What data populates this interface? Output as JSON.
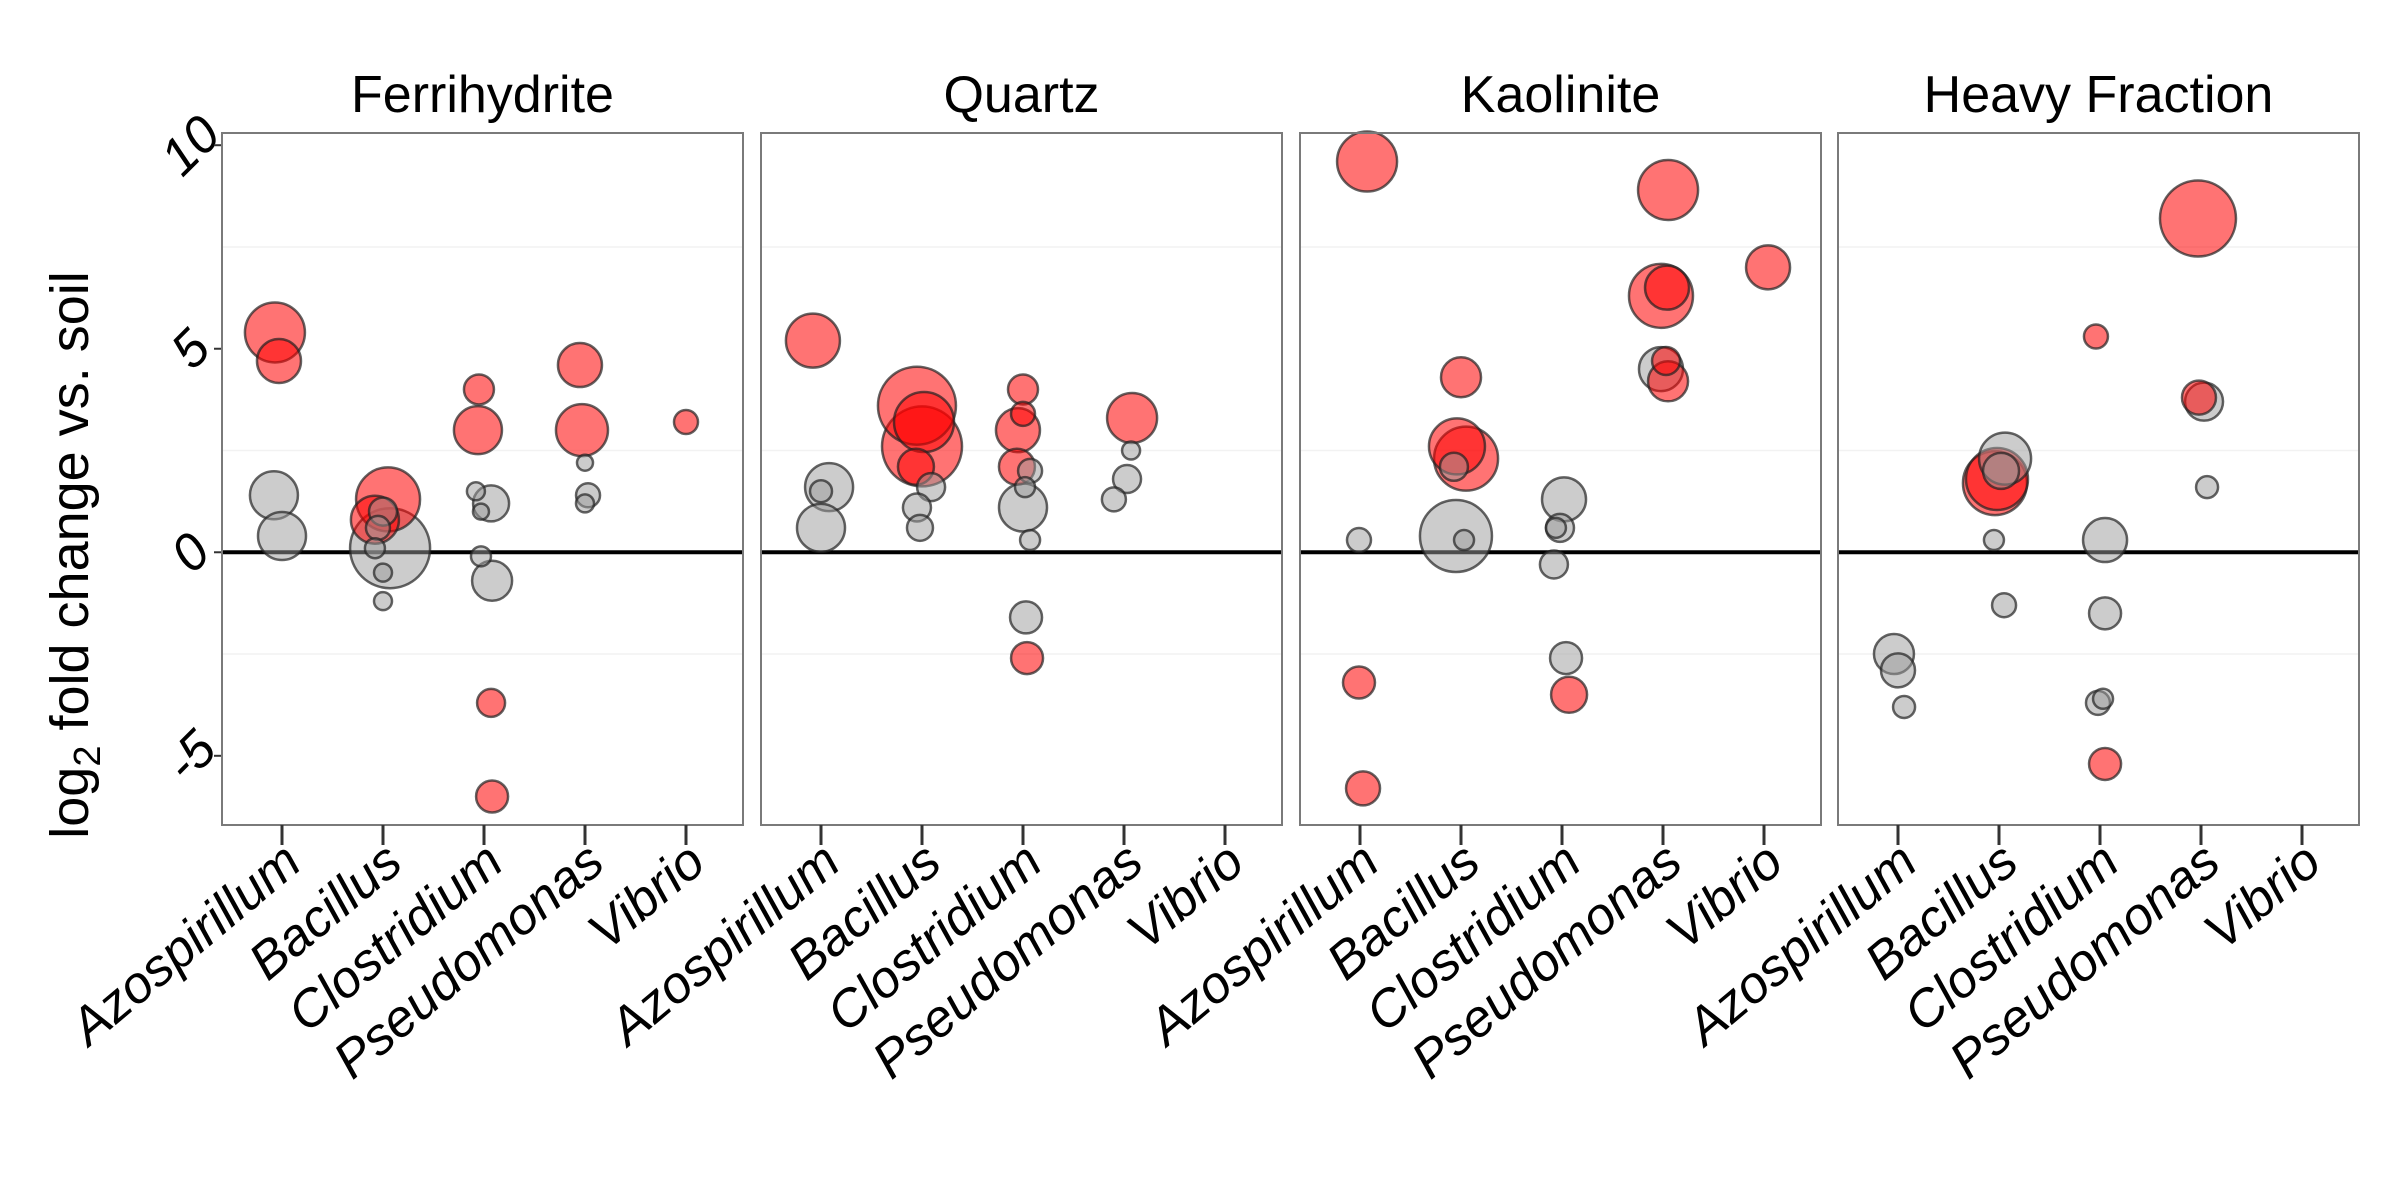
{
  "chart_data": {
    "type": "scatter",
    "ylabel": "log2 fold change vs. soil",
    "ylabel_parts": {
      "prefix": "log",
      "subscript": "2",
      "suffix": " fold change vs. soil"
    },
    "ylim": [
      -6.7,
      10.3
    ],
    "yticks": [
      10,
      5,
      0,
      -5
    ],
    "ytick_labels": [
      "10",
      "5",
      "0",
      "-5"
    ],
    "categories": [
      "Azospirillum",
      "Bacillus",
      "Clostridium",
      "Pseudomonas",
      "Vibrio"
    ],
    "reference_line": 0,
    "colors": {
      "significant": "#ff0000",
      "not_significant": "#999999",
      "outline": "#222222"
    },
    "grid": true,
    "panels": [
      {
        "title": "Ferrihydrite",
        "points": [
          {
            "category": "Azospirillum",
            "y": 5.4,
            "dx": -0.07,
            "size": 3.0,
            "sig": true
          },
          {
            "category": "Azospirillum",
            "y": 4.7,
            "dx": -0.03,
            "size": 2.2,
            "sig": true
          },
          {
            "category": "Azospirillum",
            "y": 1.4,
            "dx": -0.08,
            "size": 2.4,
            "sig": false
          },
          {
            "category": "Azospirillum",
            "y": 0.4,
            "dx": 0.0,
            "size": 2.4,
            "sig": false
          },
          {
            "category": "Bacillus",
            "y": 1.3,
            "dx": 0.05,
            "size": 3.2,
            "sig": true
          },
          {
            "category": "Bacillus",
            "y": 0.8,
            "dx": -0.08,
            "size": 2.4,
            "sig": true
          },
          {
            "category": "Bacillus",
            "y": 1.0,
            "dx": 0.0,
            "size": 1.4,
            "sig": false
          },
          {
            "category": "Bacillus",
            "y": 0.6,
            "dx": -0.05,
            "size": 1.2,
            "sig": false
          },
          {
            "category": "Bacillus",
            "y": 0.1,
            "dx": 0.07,
            "size": 4.0,
            "sig": false
          },
          {
            "category": "Bacillus",
            "y": 0.1,
            "dx": -0.08,
            "size": 1.0,
            "sig": false
          },
          {
            "category": "Bacillus",
            "y": -0.5,
            "dx": 0.0,
            "size": 0.9,
            "sig": false
          },
          {
            "category": "Bacillus",
            "y": -1.2,
            "dx": 0.0,
            "size": 0.9,
            "sig": false
          },
          {
            "category": "Clostridium",
            "y": 4.0,
            "dx": -0.05,
            "size": 1.5,
            "sig": true
          },
          {
            "category": "Clostridium",
            "y": 3.0,
            "dx": -0.06,
            "size": 2.4,
            "sig": true
          },
          {
            "category": "Clostridium",
            "y": 1.5,
            "dx": -0.08,
            "size": 0.9,
            "sig": false
          },
          {
            "category": "Clostridium",
            "y": 1.2,
            "dx": 0.07,
            "size": 1.8,
            "sig": false
          },
          {
            "category": "Clostridium",
            "y": 1.0,
            "dx": -0.03,
            "size": 0.8,
            "sig": false
          },
          {
            "category": "Clostridium",
            "y": -0.1,
            "dx": -0.03,
            "size": 1.0,
            "sig": false
          },
          {
            "category": "Clostridium",
            "y": -0.7,
            "dx": 0.08,
            "size": 2.0,
            "sig": false
          },
          {
            "category": "Clostridium",
            "y": -3.7,
            "dx": 0.07,
            "size": 1.4,
            "sig": true
          },
          {
            "category": "Clostridium",
            "y": -6.0,
            "dx": 0.08,
            "size": 1.6,
            "sig": true
          },
          {
            "category": "Pseudomonas",
            "y": 4.6,
            "dx": -0.05,
            "size": 2.2,
            "sig": true
          },
          {
            "category": "Pseudomonas",
            "y": 3.0,
            "dx": -0.03,
            "size": 2.6,
            "sig": true
          },
          {
            "category": "Pseudomonas",
            "y": 2.2,
            "dx": 0.0,
            "size": 0.8,
            "sig": false
          },
          {
            "category": "Pseudomonas",
            "y": 1.4,
            "dx": 0.03,
            "size": 1.2,
            "sig": false
          },
          {
            "category": "Pseudomonas",
            "y": 1.2,
            "dx": 0.0,
            "size": 0.9,
            "sig": false
          },
          {
            "category": "Vibrio",
            "y": 3.2,
            "dx": 0.0,
            "size": 1.2,
            "sig": true
          }
        ]
      },
      {
        "title": "Quartz",
        "points": [
          {
            "category": "Azospirillum",
            "y": 5.2,
            "dx": -0.08,
            "size": 2.7,
            "sig": true
          },
          {
            "category": "Azospirillum",
            "y": 1.6,
            "dx": 0.08,
            "size": 2.4,
            "sig": false
          },
          {
            "category": "Azospirillum",
            "y": 1.5,
            "dx": 0.0,
            "size": 1.1,
            "sig": false
          },
          {
            "category": "Azospirillum",
            "y": 0.6,
            "dx": 0.0,
            "size": 2.4,
            "sig": false
          },
          {
            "category": "Bacillus",
            "y": 3.6,
            "dx": -0.05,
            "size": 3.9,
            "sig": true
          },
          {
            "category": "Bacillus",
            "y": 3.2,
            "dx": 0.02,
            "size": 3.0,
            "sig": true
          },
          {
            "category": "Bacillus",
            "y": 2.6,
            "dx": 0.0,
            "size": 4.0,
            "sig": true
          },
          {
            "category": "Bacillus",
            "y": 2.1,
            "dx": -0.06,
            "size": 1.8,
            "sig": true
          },
          {
            "category": "Bacillus",
            "y": 1.6,
            "dx": 0.09,
            "size": 1.4,
            "sig": false
          },
          {
            "category": "Bacillus",
            "y": 1.1,
            "dx": -0.05,
            "size": 1.4,
            "sig": false
          },
          {
            "category": "Bacillus",
            "y": 0.6,
            "dx": -0.02,
            "size": 1.3,
            "sig": false
          },
          {
            "category": "Clostridium",
            "y": 4.0,
            "dx": 0.0,
            "size": 1.5,
            "sig": true
          },
          {
            "category": "Clostridium",
            "y": 3.4,
            "dx": 0.0,
            "size": 1.2,
            "sig": true
          },
          {
            "category": "Clostridium",
            "y": 3.0,
            "dx": -0.05,
            "size": 2.2,
            "sig": true
          },
          {
            "category": "Clostridium",
            "y": 2.1,
            "dx": -0.06,
            "size": 1.8,
            "sig": true
          },
          {
            "category": "Clostridium",
            "y": 2.0,
            "dx": 0.07,
            "size": 1.2,
            "sig": false
          },
          {
            "category": "Clostridium",
            "y": 1.6,
            "dx": 0.02,
            "size": 1.0,
            "sig": false
          },
          {
            "category": "Clostridium",
            "y": 1.1,
            "dx": 0.0,
            "size": 2.4,
            "sig": false
          },
          {
            "category": "Clostridium",
            "y": 0.3,
            "dx": 0.07,
            "size": 1.0,
            "sig": false
          },
          {
            "category": "Clostridium",
            "y": -1.6,
            "dx": 0.03,
            "size": 1.6,
            "sig": false
          },
          {
            "category": "Clostridium",
            "y": -2.6,
            "dx": 0.04,
            "size": 1.6,
            "sig": true
          },
          {
            "category": "Pseudomonas",
            "y": 3.3,
            "dx": 0.08,
            "size": 2.5,
            "sig": true
          },
          {
            "category": "Pseudomonas",
            "y": 2.5,
            "dx": 0.07,
            "size": 0.9,
            "sig": false
          },
          {
            "category": "Pseudomonas",
            "y": 1.8,
            "dx": 0.03,
            "size": 1.4,
            "sig": false
          },
          {
            "category": "Pseudomonas",
            "y": 1.3,
            "dx": -0.1,
            "size": 1.2,
            "sig": false
          }
        ]
      },
      {
        "title": "Kaolinite",
        "points": [
          {
            "category": "Azospirillum",
            "y": 9.6,
            "dx": 0.07,
            "size": 3.0,
            "sig": true
          },
          {
            "category": "Azospirillum",
            "y": 0.3,
            "dx": -0.01,
            "size": 1.2,
            "sig": false
          },
          {
            "category": "Azospirillum",
            "y": -3.2,
            "dx": -0.01,
            "size": 1.6,
            "sig": true
          },
          {
            "category": "Azospirillum",
            "y": -5.8,
            "dx": 0.03,
            "size": 1.7,
            "sig": true
          },
          {
            "category": "Bacillus",
            "y": 4.3,
            "dx": 0.0,
            "size": 2.0,
            "sig": true
          },
          {
            "category": "Bacillus",
            "y": 2.6,
            "dx": -0.04,
            "size": 2.8,
            "sig": true
          },
          {
            "category": "Bacillus",
            "y": 2.3,
            "dx": 0.05,
            "size": 3.2,
            "sig": true
          },
          {
            "category": "Bacillus",
            "y": 2.1,
            "dx": -0.07,
            "size": 1.4,
            "sig": false
          },
          {
            "category": "Bacillus",
            "y": 0.4,
            "dx": -0.05,
            "size": 3.6,
            "sig": false
          },
          {
            "category": "Bacillus",
            "y": 0.3,
            "dx": 0.03,
            "size": 1.0,
            "sig": false
          },
          {
            "category": "Clostridium",
            "y": 1.3,
            "dx": 0.02,
            "size": 2.2,
            "sig": false
          },
          {
            "category": "Clostridium",
            "y": 0.6,
            "dx": -0.06,
            "size": 1.0,
            "sig": false
          },
          {
            "category": "Clostridium",
            "y": 0.6,
            "dx": -0.02,
            "size": 1.4,
            "sig": false
          },
          {
            "category": "Clostridium",
            "y": -0.3,
            "dx": -0.08,
            "size": 1.4,
            "sig": false
          },
          {
            "category": "Clostridium",
            "y": -2.6,
            "dx": 0.04,
            "size": 1.6,
            "sig": false
          },
          {
            "category": "Clostridium",
            "y": -3.5,
            "dx": 0.07,
            "size": 1.8,
            "sig": true
          },
          {
            "category": "Pseudomonas",
            "y": 8.9,
            "dx": 0.05,
            "size": 3.0,
            "sig": true
          },
          {
            "category": "Pseudomonas",
            "y": 6.5,
            "dx": 0.04,
            "size": 2.2,
            "sig": true
          },
          {
            "category": "Pseudomonas",
            "y": 6.3,
            "dx": -0.02,
            "size": 3.2,
            "sig": true
          },
          {
            "category": "Pseudomonas",
            "y": 4.7,
            "dx": 0.03,
            "size": 1.4,
            "sig": true
          },
          {
            "category": "Pseudomonas",
            "y": 4.5,
            "dx": -0.02,
            "size": 2.2,
            "sig": false
          },
          {
            "category": "Pseudomonas",
            "y": 4.2,
            "dx": 0.05,
            "size": 2.0,
            "sig": true
          },
          {
            "category": "Vibrio",
            "y": 7.0,
            "dx": 0.04,
            "size": 2.2,
            "sig": true
          }
        ]
      },
      {
        "title": "Heavy Fraction",
        "points": [
          {
            "category": "Azospirillum",
            "y": -2.5,
            "dx": -0.04,
            "size": 2.0,
            "sig": false
          },
          {
            "category": "Azospirillum",
            "y": -2.9,
            "dx": 0.0,
            "size": 1.7,
            "sig": false
          },
          {
            "category": "Azospirillum",
            "y": -3.8,
            "dx": 0.06,
            "size": 1.1,
            "sig": false
          },
          {
            "category": "Bacillus",
            "y": 2.3,
            "dx": 0.06,
            "size": 2.6,
            "sig": false
          },
          {
            "category": "Bacillus",
            "y": 2.0,
            "dx": 0.02,
            "size": 1.8,
            "sig": false
          },
          {
            "category": "Bacillus",
            "y": 1.8,
            "dx": -0.02,
            "size": 3.1,
            "sig": true
          },
          {
            "category": "Bacillus",
            "y": 1.7,
            "dx": -0.04,
            "size": 3.2,
            "sig": true
          },
          {
            "category": "Bacillus",
            "y": 0.3,
            "dx": -0.05,
            "size": 1.0,
            "sig": false
          },
          {
            "category": "Bacillus",
            "y": -1.3,
            "dx": 0.05,
            "size": 1.2,
            "sig": false
          },
          {
            "category": "Clostridium",
            "y": 5.3,
            "dx": -0.04,
            "size": 1.2,
            "sig": true
          },
          {
            "category": "Clostridium",
            "y": 0.3,
            "dx": 0.05,
            "size": 2.2,
            "sig": false
          },
          {
            "category": "Clostridium",
            "y": -1.5,
            "dx": 0.05,
            "size": 1.6,
            "sig": false
          },
          {
            "category": "Clostridium",
            "y": -3.6,
            "dx": 0.03,
            "size": 1.0,
            "sig": false
          },
          {
            "category": "Clostridium",
            "y": -3.7,
            "dx": -0.02,
            "size": 1.2,
            "sig": false
          },
          {
            "category": "Clostridium",
            "y": -5.2,
            "dx": 0.05,
            "size": 1.6,
            "sig": true
          },
          {
            "category": "Pseudomonas",
            "y": 8.2,
            "dx": -0.03,
            "size": 3.8,
            "sig": true
          },
          {
            "category": "Pseudomonas",
            "y": 3.8,
            "dx": -0.02,
            "size": 1.7,
            "sig": true
          },
          {
            "category": "Pseudomonas",
            "y": 3.7,
            "dx": 0.03,
            "size": 1.9,
            "sig": false
          },
          {
            "category": "Pseudomonas",
            "y": 1.6,
            "dx": 0.06,
            "size": 1.1,
            "sig": false
          }
        ]
      }
    ]
  }
}
